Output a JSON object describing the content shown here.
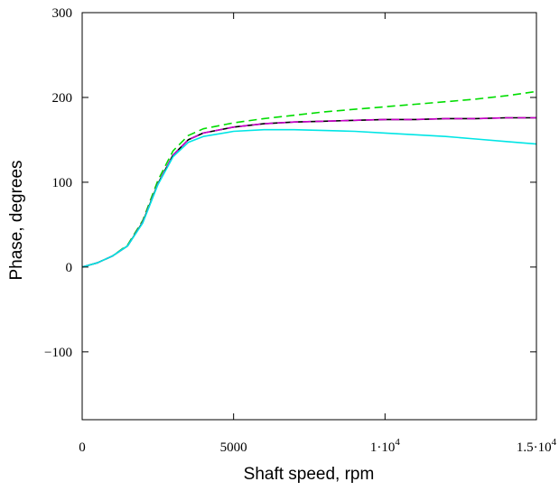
{
  "chart_data": {
    "type": "line",
    "title": "",
    "xlabel": "Shaft speed, rpm",
    "ylabel": "Phase, degrees",
    "xlim": [
      0,
      15000
    ],
    "ylim": [
      -180,
      300
    ],
    "grid": false,
    "x_ticks": [
      {
        "value": 0,
        "label": "0"
      },
      {
        "value": 5000,
        "label": "5000"
      },
      {
        "value": 10000,
        "label": "1·10",
        "exp": "4"
      },
      {
        "value": 15000,
        "label": "1.5·10",
        "exp": "4"
      }
    ],
    "y_ticks": [
      {
        "value": 300,
        "label": "300"
      },
      {
        "value": 200,
        "label": "200"
      },
      {
        "value": 100,
        "label": "100"
      },
      {
        "value": 0,
        "label": "0"
      },
      {
        "value": -100,
        "label": "−100"
      }
    ],
    "x": [
      0,
      500,
      1000,
      1500,
      2000,
      2500,
      3000,
      3500,
      4000,
      5000,
      6000,
      7000,
      8000,
      9000,
      10000,
      11000,
      12000,
      13000,
      14000,
      15000
    ],
    "series": [
      {
        "color": "#00dd00",
        "dash": "dashed",
        "values": [
          0,
          5,
          13,
          26,
          55,
          102,
          137,
          155,
          163,
          170,
          175,
          179,
          183,
          186,
          189,
          192,
          195,
          198,
          202,
          207
        ]
      },
      {
        "color": "#000000",
        "dash": "solid",
        "values": [
          0,
          5,
          13,
          25,
          53,
          98,
          132,
          150,
          158,
          165,
          169,
          171,
          172,
          173,
          174,
          174,
          175,
          175,
          176,
          176
        ]
      },
      {
        "color": "#cc00cc",
        "dash": "dashed",
        "values": [
          0,
          5,
          13,
          25,
          53,
          98,
          132,
          150,
          158,
          165,
          169,
          171,
          172,
          173,
          174,
          174,
          175,
          175,
          176,
          176
        ]
      },
      {
        "color": "#00e5e5",
        "dash": "solid",
        "values": [
          0,
          5,
          13,
          25,
          52,
          97,
          130,
          147,
          154,
          160,
          162,
          162,
          161,
          160,
          158,
          156,
          154,
          151,
          148,
          145
        ]
      }
    ]
  }
}
